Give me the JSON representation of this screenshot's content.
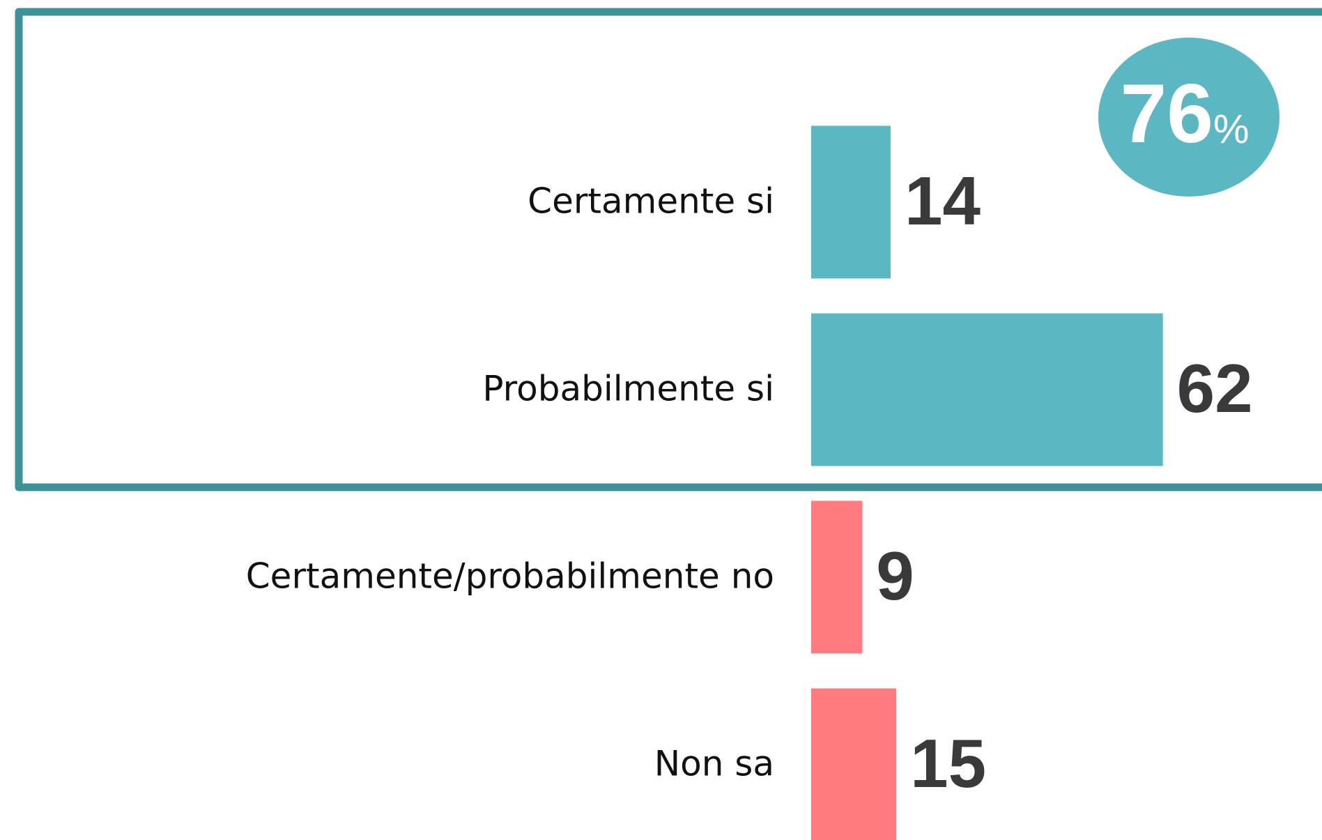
{
  "chart_data": {
    "type": "barh",
    "categories": [
      "Certamente si",
      "Probabilmente si",
      "Certamente/probabilmente no",
      "Non sa"
    ],
    "values": [
      14,
      62,
      9,
      15
    ],
    "colors": [
      "#5bb7c1",
      "#5bb7c1",
      "#ff7b80",
      "#ff7b80"
    ],
    "badge_value": 76,
    "badge_unit": "%",
    "badge_color": "#5bb7c1",
    "frame_color": "#3d9199"
  }
}
